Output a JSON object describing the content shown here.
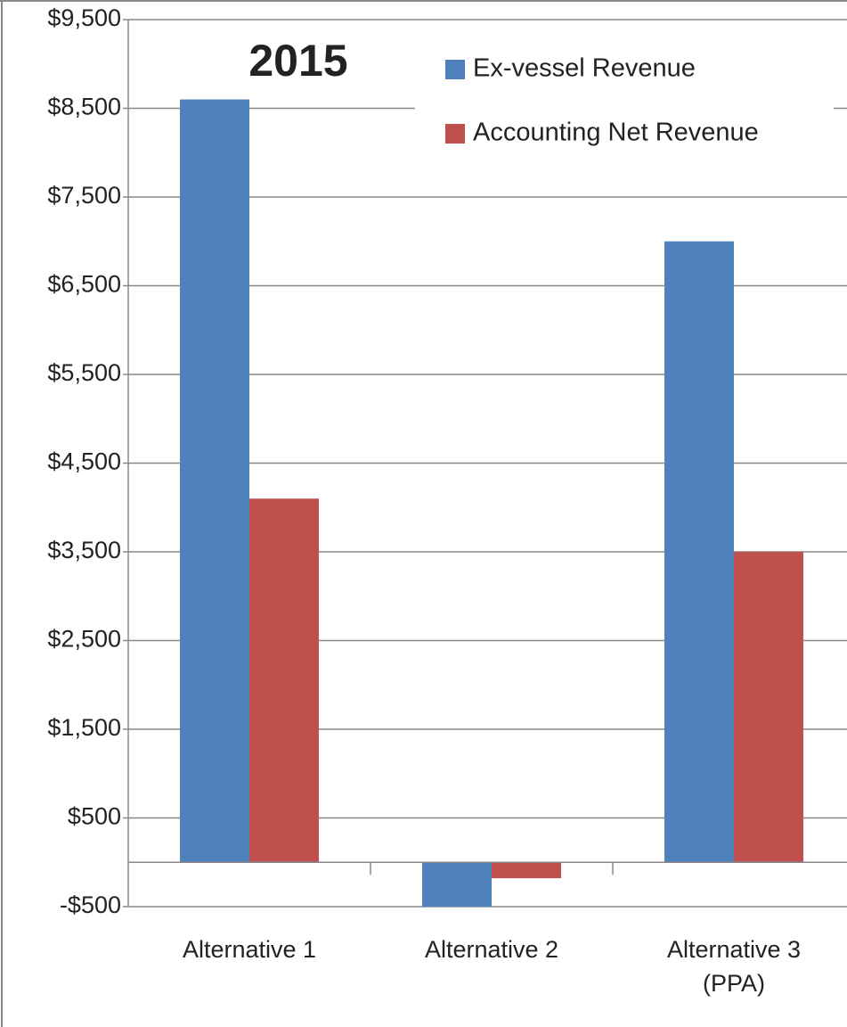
{
  "chart_data": {
    "type": "bar",
    "title": "2015",
    "categories": [
      "Alternative 1",
      "Alternative 2",
      "Alternative 3 (PPA)"
    ],
    "series": [
      {
        "name": "Ex-vessel Revenue",
        "color": "#4f81bd",
        "values": [
          8600,
          -500,
          7000
        ]
      },
      {
        "name": "Accounting Net Revenue",
        "color": "#c0504d",
        "values": [
          4100,
          -180,
          3500
        ]
      }
    ],
    "ylim": [
      -500,
      9500
    ],
    "yticks": [
      {
        "value": -500,
        "label": "-$500"
      },
      {
        "value": 500,
        "label": "$500"
      },
      {
        "value": 1500,
        "label": "$1,500"
      },
      {
        "value": 2500,
        "label": "$2,500"
      },
      {
        "value": 3500,
        "label": "$3,500"
      },
      {
        "value": 4500,
        "label": "$4,500"
      },
      {
        "value": 5500,
        "label": "$5,500"
      },
      {
        "value": 6500,
        "label": "$6,500"
      },
      {
        "value": 7500,
        "label": "$7,500"
      },
      {
        "value": 8500,
        "label": "$8,500"
      },
      {
        "value": 9500,
        "label": "$9,500"
      }
    ],
    "grid": true,
    "legend": "upper right"
  }
}
